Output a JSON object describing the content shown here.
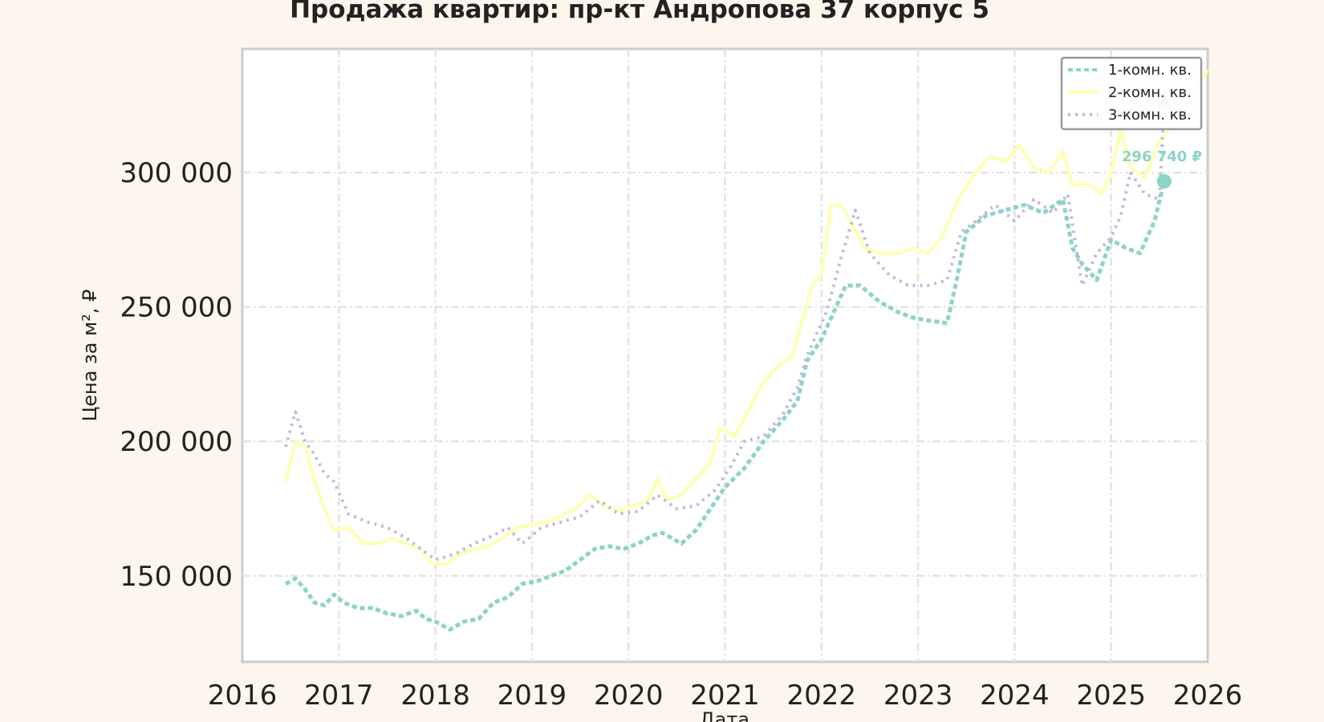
{
  "chart_data": {
    "type": "line",
    "title": "Продажа квартир: пр-кт Андропова 37 корпус 5",
    "xlabel": "Дата",
    "ylabel": "Цена за м², ₽",
    "xlim": [
      2016,
      2026
    ],
    "ylim": [
      118000,
      346000
    ],
    "x_ticks": [
      "2016",
      "2017",
      "2018",
      "2019",
      "2020",
      "2021",
      "2022",
      "2023",
      "2024",
      "2025",
      "2026"
    ],
    "y_ticks": [
      {
        "value": 150000,
        "label": "150 000"
      },
      {
        "value": 200000,
        "label": "200 000"
      },
      {
        "value": 250000,
        "label": "250 000"
      },
      {
        "value": 300000,
        "label": "300 000"
      }
    ],
    "grid": true,
    "legend_position": "top-right",
    "colors": {
      "room1": "#8dd3c7",
      "room2": "#ffffb3",
      "room3": "#bebada"
    },
    "series": [
      {
        "name": "1-комн. кв.",
        "color": "#8dd3c7",
        "style": "dotted-marker",
        "x": [
          2016.45,
          2016.55,
          2016.65,
          2016.75,
          2016.85,
          2016.95,
          2017.05,
          2017.2,
          2017.35,
          2017.5,
          2017.65,
          2017.8,
          2017.9,
          2018.0,
          2018.15,
          2018.3,
          2018.45,
          2018.6,
          2018.75,
          2018.9,
          2019.05,
          2019.2,
          2019.35,
          2019.5,
          2019.65,
          2019.8,
          2019.95,
          2020.1,
          2020.25,
          2020.35,
          2020.45,
          2020.55,
          2020.7,
          2020.85,
          2021.0,
          2021.2,
          2021.4,
          2021.6,
          2021.75,
          2021.85,
          2022.0,
          2022.15,
          2022.25,
          2022.4,
          2022.6,
          2022.8,
          2022.95,
          2023.1,
          2023.3,
          2023.4,
          2023.5,
          2023.7,
          2023.9,
          2024.1,
          2024.3,
          2024.5,
          2024.6,
          2024.7,
          2024.85,
          2025.0,
          2025.15,
          2025.3,
          2025.45,
          2025.55
        ],
        "y": [
          147000,
          149000,
          145000,
          140000,
          139000,
          143000,
          140000,
          138000,
          138000,
          136000,
          135000,
          137000,
          134000,
          133000,
          130000,
          133000,
          134000,
          140000,
          142000,
          147000,
          148000,
          150000,
          152000,
          156000,
          160000,
          161000,
          160000,
          162000,
          165000,
          166000,
          164000,
          162000,
          167000,
          175000,
          183000,
          190000,
          200000,
          208000,
          215000,
          230000,
          238000,
          250000,
          258000,
          258000,
          252000,
          248000,
          246000,
          245000,
          244000,
          260000,
          278000,
          284000,
          286000,
          288000,
          285000,
          290000,
          272000,
          266000,
          260000,
          275000,
          272000,
          270000,
          282000,
          296740
        ]
      },
      {
        "name": "2-комн. кв.",
        "color": "#ffffb3",
        "style": "solid",
        "x": [
          2016.45,
          2016.55,
          2016.65,
          2016.75,
          2016.85,
          2016.95,
          2017.1,
          2017.25,
          2017.4,
          2017.55,
          2017.7,
          2017.85,
          2017.95,
          2018.1,
          2018.25,
          2018.4,
          2018.55,
          2018.7,
          2018.85,
          2019.0,
          2019.15,
          2019.3,
          2019.45,
          2019.6,
          2019.75,
          2019.9,
          2020.05,
          2020.2,
          2020.3,
          2020.4,
          2020.55,
          2020.7,
          2020.85,
          2020.95,
          2021.1,
          2021.25,
          2021.4,
          2021.55,
          2021.7,
          2021.8,
          2021.9,
          2022.0,
          2022.1,
          2022.2,
          2022.3,
          2022.45,
          2022.6,
          2022.8,
          2022.95,
          2023.1,
          2023.25,
          2023.35,
          2023.45,
          2023.6,
          2023.75,
          2023.9,
          2024.05,
          2024.2,
          2024.35,
          2024.5,
          2024.6,
          2024.75,
          2024.9,
          2025.0,
          2025.1,
          2025.2,
          2025.35,
          2025.5,
          2025.65,
          2026.0
        ],
        "y": [
          185000,
          200000,
          198000,
          185000,
          175000,
          167000,
          168000,
          162000,
          162000,
          164000,
          162000,
          160000,
          155000,
          154000,
          158000,
          160000,
          161000,
          164000,
          168000,
          169000,
          170000,
          172000,
          175000,
          180000,
          176000,
          174000,
          176000,
          178000,
          186000,
          178000,
          180000,
          186000,
          192000,
          205000,
          202000,
          212000,
          222000,
          228000,
          232000,
          245000,
          258000,
          262000,
          288000,
          288000,
          282000,
          272000,
          270000,
          270000,
          272000,
          270000,
          276000,
          285000,
          292000,
          300000,
          306000,
          304000,
          310000,
          302000,
          300000,
          308000,
          295000,
          296000,
          292000,
          300000,
          316000,
          302000,
          298000,
          312000,
          318000,
          338000
        ]
      },
      {
        "name": "3-комн. кв.",
        "color": "#bebada",
        "style": "dotted",
        "x": [
          2016.45,
          2016.55,
          2016.65,
          2016.75,
          2016.85,
          2016.95,
          2017.1,
          2017.3,
          2017.5,
          2017.7,
          2017.85,
          2018.0,
          2018.2,
          2018.4,
          2018.6,
          2018.75,
          2018.9,
          2019.1,
          2019.3,
          2019.5,
          2019.7,
          2019.9,
          2020.1,
          2020.3,
          2020.5,
          2020.7,
          2020.9,
          2021.05,
          2021.2,
          2021.4,
          2021.6,
          2021.75,
          2021.85,
          2021.95,
          2022.05,
          2022.2,
          2022.35,
          2022.5,
          2022.7,
          2022.9,
          2023.1,
          2023.3,
          2023.45,
          2023.6,
          2023.8,
          2024.0,
          2024.2,
          2024.4,
          2024.55,
          2024.7,
          2024.85,
          2025.0,
          2025.1,
          2025.2,
          2025.35,
          2025.5,
          2025.55
        ],
        "y": [
          198000,
          211000,
          200000,
          195000,
          188000,
          185000,
          173000,
          170000,
          168000,
          164000,
          160000,
          156000,
          158000,
          162000,
          165000,
          168000,
          162000,
          168000,
          170000,
          172000,
          178000,
          173000,
          174000,
          180000,
          175000,
          176000,
          182000,
          190000,
          200000,
          202000,
          210000,
          220000,
          232000,
          240000,
          248000,
          268000,
          286000,
          270000,
          262000,
          258000,
          258000,
          260000,
          278000,
          282000,
          288000,
          282000,
          290000,
          285000,
          292000,
          258000,
          270000,
          276000,
          284000,
          300000,
          292000,
          290000,
          326000
        ]
      }
    ],
    "annotation": {
      "text": "296 740 ₽",
      "x": 2025.55,
      "y": 296740,
      "color": "#8dd3c7"
    }
  }
}
